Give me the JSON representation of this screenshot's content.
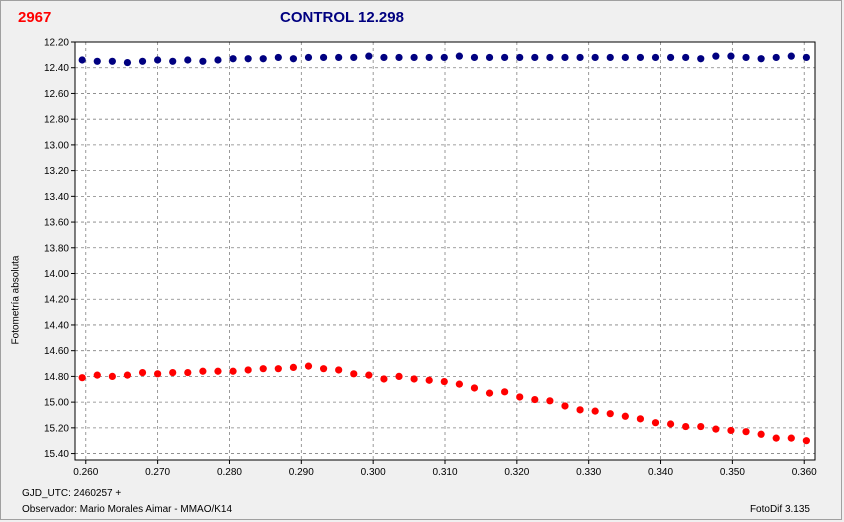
{
  "header": {
    "object_id": "2967",
    "control_label": "CONTROL 12.298"
  },
  "footer": {
    "gjd": "GJD_UTC: 2460257 +",
    "observer": "Observador: Mario Morales Aimar - MMAO/K14",
    "version": "FotoDif 3.135"
  },
  "colors": {
    "object": "#ff0000",
    "control": "#000080",
    "grid": "#808080",
    "plot_bg": "#ffffff"
  },
  "chart_data": {
    "type": "scatter",
    "ylabel": "Fotometría absoluta",
    "xlabel": "",
    "xlim": [
      0.2585,
      0.3615
    ],
    "ylim": [
      12.2,
      15.45
    ],
    "y_inverted": true,
    "grid": true,
    "x_ticks": [
      "0.260",
      "0.270",
      "0.280",
      "0.290",
      "0.300",
      "0.310",
      "0.320",
      "0.330",
      "0.340",
      "0.350",
      "0.360"
    ],
    "x_tick_values": [
      0.26,
      0.27,
      0.28,
      0.29,
      0.3,
      0.31,
      0.32,
      0.33,
      0.34,
      0.35,
      0.36
    ],
    "y_ticks": [
      "12.20",
      "12.40",
      "12.60",
      "12.80",
      "13.00",
      "13.20",
      "13.40",
      "13.60",
      "13.80",
      "14.00",
      "14.20",
      "14.40",
      "14.60",
      "14.80",
      "15.00",
      "15.20",
      "15.40"
    ],
    "y_tick_values": [
      12.2,
      12.4,
      12.6,
      12.8,
      13.0,
      13.2,
      13.4,
      13.6,
      13.8,
      14.0,
      14.2,
      14.4,
      14.6,
      14.8,
      15.0,
      15.2,
      15.4
    ]
  },
  "series": [
    {
      "color": "#000080",
      "x": [
        0.2595,
        0.2616,
        0.2637,
        0.2658,
        0.2679,
        0.27,
        0.2721,
        0.2742,
        0.2763,
        0.2784,
        0.2805,
        0.2826,
        0.2847,
        0.2868,
        0.2889,
        0.291,
        0.2931,
        0.2952,
        0.2973,
        0.2994,
        0.3015,
        0.3036,
        0.3057,
        0.3078,
        0.3099,
        0.312,
        0.3141,
        0.3162,
        0.3183,
        0.3204,
        0.3225,
        0.3246,
        0.3267,
        0.3288,
        0.3309,
        0.333,
        0.3351,
        0.3372,
        0.3393,
        0.3414,
        0.3435,
        0.3456,
        0.3477,
        0.3498,
        0.3519,
        0.354,
        0.3561,
        0.3582,
        0.3603
      ],
      "y": [
        12.34,
        12.35,
        12.35,
        12.36,
        12.35,
        12.34,
        12.35,
        12.34,
        12.35,
        12.34,
        12.33,
        12.33,
        12.33,
        12.32,
        12.33,
        12.32,
        12.32,
        12.32,
        12.32,
        12.31,
        12.32,
        12.32,
        12.32,
        12.32,
        12.32,
        12.31,
        12.32,
        12.32,
        12.32,
        12.32,
        12.32,
        12.32,
        12.32,
        12.32,
        12.32,
        12.32,
        12.32,
        12.32,
        12.32,
        12.32,
        12.32,
        12.33,
        12.31,
        12.31,
        12.32,
        12.33,
        12.32,
        12.31,
        12.32
      ]
    },
    {
      "color": "#ff0000",
      "x": [
        0.2595,
        0.2616,
        0.2637,
        0.2658,
        0.2679,
        0.27,
        0.2721,
        0.2742,
        0.2763,
        0.2784,
        0.2805,
        0.2826,
        0.2847,
        0.2868,
        0.2889,
        0.291,
        0.2931,
        0.2952,
        0.2973,
        0.2994,
        0.3015,
        0.3036,
        0.3057,
        0.3078,
        0.3099,
        0.312,
        0.3141,
        0.3162,
        0.3183,
        0.3204,
        0.3225,
        0.3246,
        0.3267,
        0.3288,
        0.3309,
        0.333,
        0.3351,
        0.3372,
        0.3393,
        0.3414,
        0.3435,
        0.3456,
        0.3477,
        0.3498,
        0.3519,
        0.354,
        0.3561,
        0.3582,
        0.3603
      ],
      "y": [
        14.81,
        14.79,
        14.8,
        14.79,
        14.77,
        14.78,
        14.77,
        14.77,
        14.76,
        14.76,
        14.76,
        14.75,
        14.74,
        14.74,
        14.73,
        14.72,
        14.74,
        14.75,
        14.78,
        14.79,
        14.82,
        14.8,
        14.82,
        14.83,
        14.84,
        14.86,
        14.89,
        14.93,
        14.92,
        14.96,
        14.98,
        14.99,
        15.03,
        15.06,
        15.07,
        15.09,
        15.11,
        15.13,
        15.16,
        15.17,
        15.19,
        15.19,
        15.21,
        15.22,
        15.23,
        15.25,
        15.28,
        15.28,
        15.3
      ]
    }
  ]
}
